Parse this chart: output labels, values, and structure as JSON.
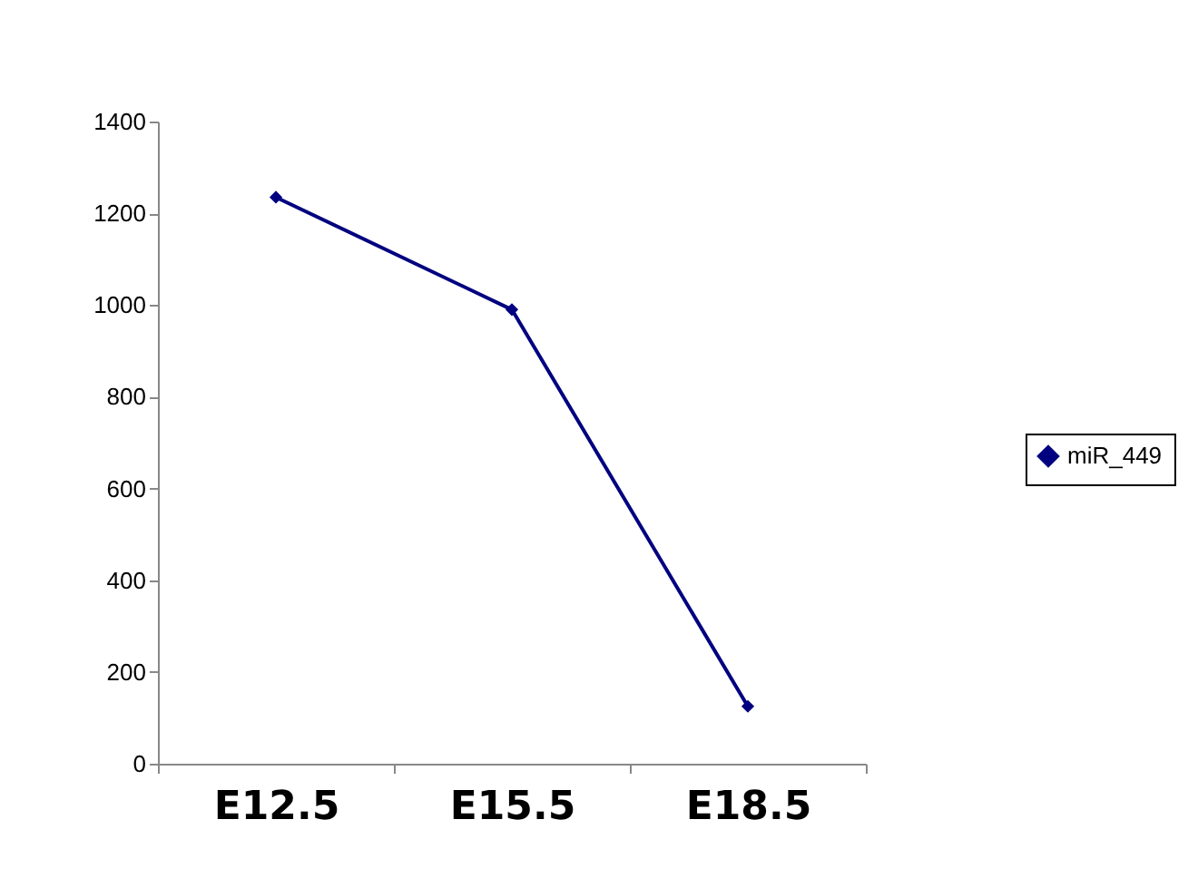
{
  "chart_data": {
    "type": "line",
    "categories": [
      "E12.5",
      "E15.5",
      "E18.5"
    ],
    "series": [
      {
        "name": "miR_449",
        "color": "#000080",
        "values": [
          1235,
          990,
          125
        ]
      }
    ],
    "ylim": [
      0,
      1400
    ],
    "yticks": [
      0,
      200,
      400,
      600,
      800,
      1000,
      1200,
      1400
    ],
    "grid": false,
    "legend": "right",
    "marker": "diamond",
    "line_style": "solid"
  }
}
